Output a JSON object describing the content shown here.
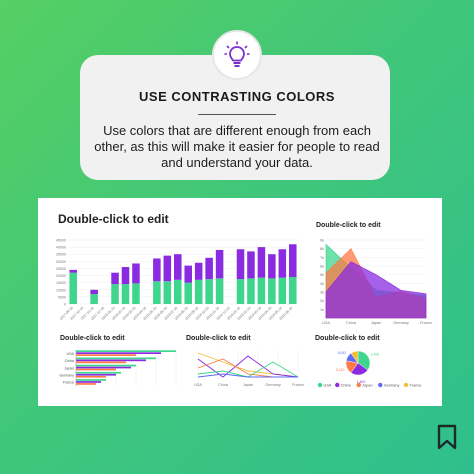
{
  "tip": {
    "icon": "lightbulb-icon",
    "title": "USE CONTRASTING COLORS",
    "body": "Use colors that are different enough from each other, as this will make it easier for people to read and understand your data."
  },
  "colors": {
    "green": "#3dd68c",
    "purple": "#8a2be2",
    "orange": "#ff7a45",
    "blue": "#5b6cf5",
    "yellow": "#f2c038"
  },
  "chart_data": [
    {
      "type": "bar",
      "title": "Double-click to edit",
      "stacked": true,
      "ylim": [
        0,
        45000
      ],
      "yticks": [
        "45000",
        "40000",
        "35000",
        "30000",
        "25000",
        "20000",
        "15000",
        "10000",
        "5000",
        "0"
      ],
      "categories": [
        "2017-09-16",
        "2017-10-16",
        "2017-11-16",
        "2017-12-16",
        "2018-01-16",
        "2018-02-16",
        "2018-03-16",
        "2018-04-16",
        "2018-05-16",
        "2018-06-16",
        "2018-07-16",
        "2018-08-16",
        "2018-09-16",
        "2018-10-16",
        "2018-11-16",
        "2018-12-16",
        "2019-01-16",
        "2019-02-16",
        "2019-03-16",
        "2019-04-16",
        "2019-05-16",
        "2019-06-16"
      ],
      "xticks": [
        "2017-09-16",
        "2017-10-16",
        "2017-11-16",
        "2017-12-16",
        "2018-01-16",
        "2018-02-16",
        "2018-03-16",
        "2018-04-16",
        "2018-05-16",
        "2018-06-16",
        "2018-07-16",
        "2018-08-16",
        "2018-09-16",
        "2018-10-16",
        "2018-11-16",
        "2018-12-16",
        "2019-01-16",
        "2019-02-16",
        "2019-03-16",
        "2019-04-16",
        "2019-05-16",
        "2019-06-16"
      ],
      "series": [
        {
          "color": "#3dd68c",
          "values": [
            22000,
            0,
            7000,
            0,
            14000,
            14000,
            14500,
            0,
            16000,
            16000,
            17000,
            15000,
            17000,
            17500,
            18000,
            0,
            17500,
            18000,
            18500,
            18000,
            18500,
            19000
          ]
        },
        {
          "color": "#8a2be2",
          "values": [
            2000,
            0,
            3000,
            0,
            8000,
            12000,
            14000,
            0,
            16000,
            18000,
            18000,
            12000,
            12000,
            15000,
            20000,
            0,
            21000,
            19000,
            21500,
            17000,
            20000,
            23000
          ]
        }
      ]
    },
    {
      "type": "area",
      "title": "Double-click to edit",
      "ylim": [
        0,
        9000
      ],
      "yticks": [
        "9k",
        "8k",
        "7k",
        "6k",
        "5k",
        "4k",
        "3k",
        "2k",
        "1k"
      ],
      "categories": [
        "USA",
        "China",
        "Japan",
        "Germany",
        "France"
      ],
      "series": [
        {
          "color": "#3dd68c",
          "values": [
            8500,
            5800,
            3200,
            2900,
            2600
          ]
        },
        {
          "color": "#ff7a45",
          "values": [
            5200,
            8000,
            2400,
            3100,
            2200
          ]
        },
        {
          "color": "#8a2be2",
          "values": [
            3000,
            6500,
            5000,
            3200,
            2800
          ]
        }
      ]
    },
    {
      "type": "bar",
      "orientation": "horizontal",
      "title": "Double-click to edit",
      "categories": [
        "USA",
        "China",
        "Japan",
        "Germany",
        "France"
      ],
      "xticks": [
        "",
        "",
        "",
        "",
        "",
        ""
      ],
      "series": [
        {
          "color": "#3dd68c",
          "values": [
            100,
            80,
            60,
            45,
            30
          ]
        },
        {
          "color": "#8a2be2",
          "values": [
            85,
            70,
            55,
            40,
            25
          ]
        },
        {
          "color": "#ff7a45",
          "values": [
            60,
            50,
            40,
            30,
            20
          ]
        }
      ]
    },
    {
      "type": "line",
      "title": "Double-click to edit",
      "categories": [
        "USA",
        "China",
        "Japan",
        "Germany",
        "France"
      ],
      "series": [
        {
          "color": "#f2c038",
          "values": [
            9,
            6,
            3,
            2,
            1
          ]
        },
        {
          "color": "#8a2be2",
          "values": [
            7,
            1,
            8,
            2,
            1
          ]
        },
        {
          "color": "#ff7a45",
          "values": [
            4,
            7,
            2,
            1,
            1
          ]
        },
        {
          "color": "#3dd68c",
          "values": [
            2,
            3,
            1,
            6,
            1
          ]
        },
        {
          "color": "#5b6cf5",
          "values": [
            1,
            2,
            1,
            1,
            1
          ]
        }
      ]
    },
    {
      "type": "pie",
      "title": "Double-click to edit",
      "labels": [
        "USA",
        "China",
        "Japan",
        "Germany",
        "France"
      ],
      "values": [
        35,
        25,
        18,
        12,
        10
      ],
      "colors": [
        "#3dd68c",
        "#8a2be2",
        "#ff7a45",
        "#5b6cf5",
        "#f2c038"
      ],
      "slice_labels": [
        "1,406",
        "1,400",
        "5,110",
        "5,042",
        ""
      ]
    }
  ]
}
